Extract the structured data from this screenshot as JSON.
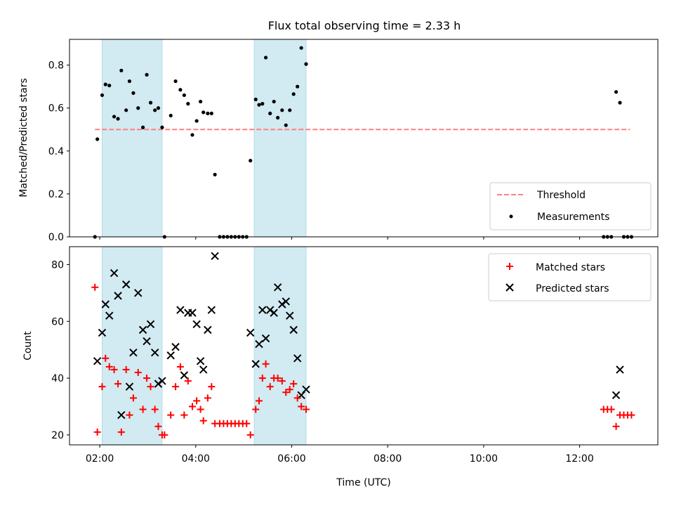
{
  "title": "Flux total observing time = 2.33 h",
  "colors": {
    "shade": "#add8e6",
    "threshold": "#ff7f7f",
    "matched": "#ff0000",
    "predicted": "#000000",
    "measurement": "#000000"
  },
  "chart_data": [
    {
      "type": "scatter",
      "ylabel": "Matched/Predicted stars",
      "xlim": [
        1.37,
        13.63
      ],
      "ylim": [
        0,
        0.92
      ],
      "yticks": [
        0.0,
        0.2,
        0.4,
        0.6,
        0.8
      ],
      "ytick_labels": [
        "0.0",
        "0.2",
        "0.4",
        "0.6",
        "0.8"
      ],
      "shaded_intervals": [
        [
          2.05,
          3.3
        ],
        [
          5.22,
          6.3
        ]
      ],
      "threshold": {
        "name": "Threshold",
        "y": 0.5,
        "x": [
          1.9,
          13.05
        ]
      },
      "legend": [
        "Threshold",
        "Measurements"
      ],
      "series": [
        {
          "name": "Measurements",
          "points": [
            [
              1.9,
              0.0
            ],
            [
              1.95,
              0.455
            ],
            [
              2.05,
              0.66
            ],
            [
              2.12,
              0.71
            ],
            [
              2.2,
              0.705
            ],
            [
              2.3,
              0.56
            ],
            [
              2.38,
              0.55
            ],
            [
              2.45,
              0.775
            ],
            [
              2.55,
              0.59
            ],
            [
              2.62,
              0.725
            ],
            [
              2.7,
              0.67
            ],
            [
              2.8,
              0.6
            ],
            [
              2.9,
              0.51
            ],
            [
              2.98,
              0.755
            ],
            [
              3.06,
              0.625
            ],
            [
              3.15,
              0.59
            ],
            [
              3.22,
              0.6
            ],
            [
              3.3,
              0.51
            ],
            [
              3.35,
              0.0
            ],
            [
              3.48,
              0.565
            ],
            [
              3.58,
              0.725
            ],
            [
              3.68,
              0.685
            ],
            [
              3.76,
              0.66
            ],
            [
              3.84,
              0.62
            ],
            [
              3.93,
              0.475
            ],
            [
              4.02,
              0.54
            ],
            [
              4.1,
              0.63
            ],
            [
              4.16,
              0.58
            ],
            [
              4.25,
              0.575
            ],
            [
              4.33,
              0.575
            ],
            [
              4.4,
              0.29
            ],
            [
              4.5,
              0.0
            ],
            [
              4.58,
              0.0
            ],
            [
              4.66,
              0.0
            ],
            [
              4.74,
              0.0
            ],
            [
              4.82,
              0.0
            ],
            [
              4.9,
              0.0
            ],
            [
              4.98,
              0.0
            ],
            [
              5.06,
              0.0
            ],
            [
              5.14,
              0.355
            ],
            [
              5.25,
              0.64
            ],
            [
              5.32,
              0.615
            ],
            [
              5.39,
              0.62
            ],
            [
              5.46,
              0.835
            ],
            [
              5.55,
              0.575
            ],
            [
              5.63,
              0.63
            ],
            [
              5.71,
              0.555
            ],
            [
              5.8,
              0.59
            ],
            [
              5.88,
              0.52
            ],
            [
              5.96,
              0.59
            ],
            [
              6.04,
              0.665
            ],
            [
              6.12,
              0.7
            ],
            [
              6.2,
              0.88
            ],
            [
              6.3,
              0.805
            ],
            [
              12.5,
              0.0
            ],
            [
              12.58,
              0.0
            ],
            [
              12.66,
              0.0
            ],
            [
              12.76,
              0.675
            ],
            [
              12.84,
              0.625
            ],
            [
              12.92,
              0.0
            ],
            [
              13.0,
              0.0
            ],
            [
              13.08,
              0.0
            ]
          ]
        }
      ]
    },
    {
      "type": "scatter",
      "ylabel": "Count",
      "xlabel": "Time (UTC)",
      "xlim": [
        1.37,
        13.63
      ],
      "ylim": [
        16.5,
        86.3
      ],
      "xticks": [
        2,
        4,
        6,
        8,
        10,
        12
      ],
      "xtick_labels": [
        "02:00",
        "04:00",
        "06:00",
        "08:00",
        "10:00",
        "12:00"
      ],
      "yticks": [
        20,
        40,
        60,
        80
      ],
      "ytick_labels": [
        "20",
        "40",
        "60",
        "80"
      ],
      "shaded_intervals": [
        [
          2.05,
          3.3
        ],
        [
          5.22,
          6.3
        ]
      ],
      "legend": [
        "Matched stars",
        "Predicted stars"
      ],
      "series": [
        {
          "name": "Matched stars",
          "marker": "plus",
          "points": [
            [
              1.9,
              72
            ],
            [
              1.95,
              21
            ],
            [
              2.05,
              37
            ],
            [
              2.12,
              47
            ],
            [
              2.2,
              44
            ],
            [
              2.3,
              43
            ],
            [
              2.38,
              38
            ],
            [
              2.45,
              21
            ],
            [
              2.55,
              43
            ],
            [
              2.62,
              27
            ],
            [
              2.7,
              33
            ],
            [
              2.8,
              42
            ],
            [
              2.9,
              29
            ],
            [
              2.98,
              40
            ],
            [
              3.06,
              37
            ],
            [
              3.15,
              29
            ],
            [
              3.22,
              23
            ],
            [
              3.3,
              20
            ],
            [
              3.35,
              20
            ],
            [
              3.48,
              27
            ],
            [
              3.58,
              37
            ],
            [
              3.68,
              44
            ],
            [
              3.76,
              27
            ],
            [
              3.84,
              39
            ],
            [
              3.93,
              30
            ],
            [
              4.02,
              32
            ],
            [
              4.1,
              29
            ],
            [
              4.16,
              25
            ],
            [
              4.25,
              33
            ],
            [
              4.33,
              37
            ],
            [
              4.4,
              24
            ],
            [
              4.5,
              24
            ],
            [
              4.58,
              24
            ],
            [
              4.66,
              24
            ],
            [
              4.74,
              24
            ],
            [
              4.82,
              24
            ],
            [
              4.9,
              24
            ],
            [
              4.98,
              24
            ],
            [
              5.06,
              24
            ],
            [
              5.14,
              20
            ],
            [
              5.25,
              29
            ],
            [
              5.32,
              32
            ],
            [
              5.39,
              40
            ],
            [
              5.46,
              45
            ],
            [
              5.55,
              37
            ],
            [
              5.63,
              40
            ],
            [
              5.71,
              40
            ],
            [
              5.8,
              39
            ],
            [
              5.88,
              35
            ],
            [
              5.96,
              36
            ],
            [
              6.04,
              38
            ],
            [
              6.12,
              33
            ],
            [
              6.2,
              30
            ],
            [
              6.3,
              29
            ],
            [
              12.5,
              29
            ],
            [
              12.58,
              29
            ],
            [
              12.66,
              29
            ],
            [
              12.76,
              23
            ],
            [
              12.84,
              27
            ],
            [
              12.92,
              27
            ],
            [
              13.0,
              27
            ],
            [
              13.08,
              27
            ]
          ]
        },
        {
          "name": "Predicted stars",
          "marker": "x",
          "points": [
            [
              1.95,
              46
            ],
            [
              2.05,
              56
            ],
            [
              2.12,
              66
            ],
            [
              2.2,
              62
            ],
            [
              2.3,
              77
            ],
            [
              2.38,
              69
            ],
            [
              2.45,
              27
            ],
            [
              2.55,
              73
            ],
            [
              2.62,
              37
            ],
            [
              2.7,
              49
            ],
            [
              2.8,
              70
            ],
            [
              2.9,
              57
            ],
            [
              2.98,
              53
            ],
            [
              3.06,
              59
            ],
            [
              3.15,
              49
            ],
            [
              3.22,
              38
            ],
            [
              3.3,
              39
            ],
            [
              3.48,
              48
            ],
            [
              3.58,
              51
            ],
            [
              3.68,
              64
            ],
            [
              3.76,
              41
            ],
            [
              3.84,
              63
            ],
            [
              3.93,
              63
            ],
            [
              4.02,
              59
            ],
            [
              4.1,
              46
            ],
            [
              4.16,
              43
            ],
            [
              4.25,
              57
            ],
            [
              4.33,
              64
            ],
            [
              4.4,
              83
            ],
            [
              5.14,
              56
            ],
            [
              5.25,
              45
            ],
            [
              5.32,
              52
            ],
            [
              5.39,
              64
            ],
            [
              5.46,
              54
            ],
            [
              5.55,
              64
            ],
            [
              5.63,
              63
            ],
            [
              5.71,
              72
            ],
            [
              5.8,
              66
            ],
            [
              5.88,
              67
            ],
            [
              5.96,
              62
            ],
            [
              6.04,
              57
            ],
            [
              6.12,
              47
            ],
            [
              6.2,
              34
            ],
            [
              6.3,
              36
            ],
            [
              12.76,
              34
            ],
            [
              12.84,
              43
            ]
          ]
        }
      ]
    }
  ]
}
